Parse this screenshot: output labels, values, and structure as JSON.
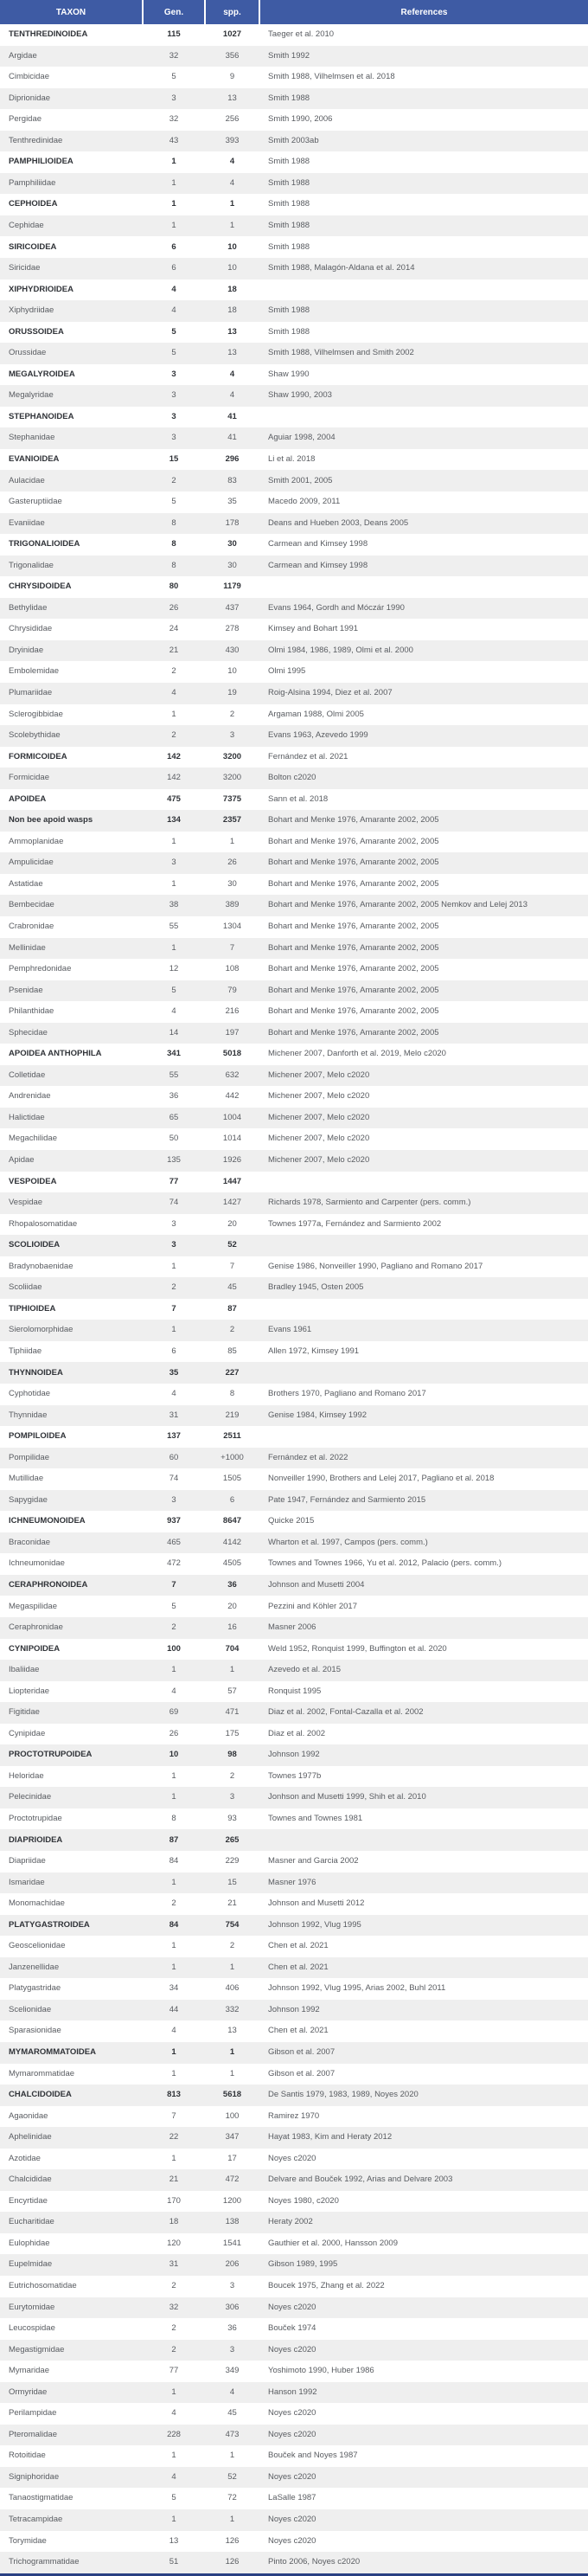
{
  "table": {
    "columns": [
      "TAXON",
      "Gen.",
      "spp.",
      "References"
    ],
    "rows": [
      {
        "taxon": "TENTHREDINOIDEA",
        "gen": "115",
        "spp": "1027",
        "refs": "Taeger et al. 2010",
        "bold": true
      },
      {
        "taxon": "Argidae",
        "gen": "32",
        "spp": "356",
        "refs": "Smith 1992",
        "bold": false
      },
      {
        "taxon": "Cimbicidae",
        "gen": "5",
        "spp": "9",
        "refs": "Smith 1988, Vilhelmsen et al. 2018",
        "bold": false
      },
      {
        "taxon": "Diprionidae",
        "gen": "3",
        "spp": "13",
        "refs": "Smith 1988",
        "bold": false
      },
      {
        "taxon": "Pergidae",
        "gen": "32",
        "spp": "256",
        "refs": "Smith 1990, 2006",
        "bold": false
      },
      {
        "taxon": "Tenthredinidae",
        "gen": "43",
        "spp": "393",
        "refs": "Smith 2003ab",
        "bold": false
      },
      {
        "taxon": "PAMPHILIOIDEA",
        "gen": "1",
        "spp": "4",
        "refs": "Smith 1988",
        "bold": true
      },
      {
        "taxon": "Pamphiliidae",
        "gen": "1",
        "spp": "4",
        "refs": "Smith 1988",
        "bold": false
      },
      {
        "taxon": "CEPHOIDEA",
        "gen": "1",
        "spp": "1",
        "refs": "Smith 1988",
        "bold": true
      },
      {
        "taxon": "Cephidae",
        "gen": "1",
        "spp": "1",
        "refs": "Smith 1988",
        "bold": false
      },
      {
        "taxon": "SIRICOIDEA",
        "gen": "6",
        "spp": "10",
        "refs": "Smith 1988",
        "bold": true
      },
      {
        "taxon": "Siricidae",
        "gen": "6",
        "spp": "10",
        "refs": "Smith 1988, Malagón-Aldana et al. 2014",
        "bold": false
      },
      {
        "taxon": "XIPHYDRIOIDEA",
        "gen": "4",
        "spp": "18",
        "refs": "",
        "bold": true
      },
      {
        "taxon": "Xiphydriidae",
        "gen": "4",
        "spp": "18",
        "refs": "Smith 1988",
        "bold": false
      },
      {
        "taxon": "ORUSSOIDEA",
        "gen": "5",
        "spp": "13",
        "refs": "Smith 1988",
        "bold": true
      },
      {
        "taxon": "Orussidae",
        "gen": "5",
        "spp": "13",
        "refs": "Smith 1988, Vilhelmsen and Smith 2002",
        "bold": false
      },
      {
        "taxon": "MEGALYROIDEA",
        "gen": "3",
        "spp": "4",
        "refs": "Shaw 1990",
        "bold": true
      },
      {
        "taxon": "Megalyridae",
        "gen": "3",
        "spp": "4",
        "refs": "Shaw 1990, 2003",
        "bold": false
      },
      {
        "taxon": "STEPHANOIDEA",
        "gen": "3",
        "spp": "41",
        "refs": "",
        "bold": true
      },
      {
        "taxon": "Stephanidae",
        "gen": "3",
        "spp": "41",
        "refs": "Aguiar 1998, 2004",
        "bold": false
      },
      {
        "taxon": "EVANIOIDEA",
        "gen": "15",
        "spp": "296",
        "refs": "Li et al. 2018",
        "bold": true
      },
      {
        "taxon": "Aulacidae",
        "gen": "2",
        "spp": "83",
        "refs": "Smith 2001, 2005",
        "bold": false
      },
      {
        "taxon": "Gasteruptiidae",
        "gen": "5",
        "spp": "35",
        "refs": "Macedo 2009, 2011",
        "bold": false
      },
      {
        "taxon": "Evaniidae",
        "gen": "8",
        "spp": "178",
        "refs": "Deans and Hueben 2003, Deans 2005",
        "bold": false
      },
      {
        "taxon": "TRIGONALIOIDEA",
        "gen": "8",
        "spp": "30",
        "refs": "Carmean and Kimsey 1998",
        "bold": true
      },
      {
        "taxon": "Trigonalidae",
        "gen": "8",
        "spp": "30",
        "refs": "Carmean and Kimsey 1998",
        "bold": false
      },
      {
        "taxon": "CHRYSIDOIDEA",
        "gen": "80",
        "spp": "1179",
        "refs": "",
        "bold": true
      },
      {
        "taxon": "Bethylidae",
        "gen": "26",
        "spp": "437",
        "refs": "Evans 1964, Gordh and Móczár 1990",
        "bold": false
      },
      {
        "taxon": "Chrysididae",
        "gen": "24",
        "spp": "278",
        "refs": "Kimsey and Bohart 1991",
        "bold": false
      },
      {
        "taxon": "Dryinidae",
        "gen": "21",
        "spp": "430",
        "refs": "Olmi 1984, 1986, 1989, Olmi et al. 2000",
        "bold": false
      },
      {
        "taxon": "Embolemidae",
        "gen": "2",
        "spp": "10",
        "refs": "Olmi 1995",
        "bold": false
      },
      {
        "taxon": "Plumariidae",
        "gen": "4",
        "spp": "19",
        "refs": "Roig-Alsina 1994, Diez et al. 2007",
        "bold": false
      },
      {
        "taxon": "Sclerogibbidae",
        "gen": "1",
        "spp": "2",
        "refs": "Argaman 1988, Olmi 2005",
        "bold": false
      },
      {
        "taxon": "Scolebythidae",
        "gen": "2",
        "spp": "3",
        "refs": "Evans 1963, Azevedo 1999",
        "bold": false
      },
      {
        "taxon": "FORMICOIDEA",
        "gen": "142",
        "spp": "3200",
        "refs": "Fernández et al. 2021",
        "bold": true
      },
      {
        "taxon": "Formicidae",
        "gen": "142",
        "spp": "3200",
        "refs": "Bolton c2020",
        "bold": false
      },
      {
        "taxon": "APOIDEA",
        "gen": "475",
        "spp": "7375",
        "refs": "Sann et al. 2018",
        "bold": true
      },
      {
        "taxon": "Non bee apoid wasps",
        "gen": "134",
        "spp": "2357",
        "refs": "Bohart and Menke 1976, Amarante 2002, 2005",
        "bold": true
      },
      {
        "taxon": "Ammoplanidae",
        "gen": "1",
        "spp": "1",
        "refs": "Bohart and Menke 1976, Amarante 2002, 2005",
        "bold": false
      },
      {
        "taxon": "Ampulicidae",
        "gen": "3",
        "spp": "26",
        "refs": "Bohart and Menke 1976, Amarante 2002, 2005",
        "bold": false
      },
      {
        "taxon": "Astatidae",
        "gen": "1",
        "spp": "30",
        "refs": "Bohart and Menke 1976, Amarante 2002, 2005",
        "bold": false
      },
      {
        "taxon": "Bembecidae",
        "gen": "38",
        "spp": "389",
        "refs": "Bohart and Menke 1976, Amarante 2002, 2005 Nemkov and Lelej 2013",
        "bold": false
      },
      {
        "taxon": "Crabronidae",
        "gen": "55",
        "spp": "1304",
        "refs": "Bohart and Menke 1976, Amarante 2002, 2005",
        "bold": false
      },
      {
        "taxon": "Mellinidae",
        "gen": "1",
        "spp": "7",
        "refs": "Bohart and Menke 1976, Amarante 2002, 2005",
        "bold": false
      },
      {
        "taxon": "Pemphredonidae",
        "gen": "12",
        "spp": "108",
        "refs": "Bohart and Menke 1976, Amarante 2002, 2005",
        "bold": false
      },
      {
        "taxon": "Psenidae",
        "gen": "5",
        "spp": "79",
        "refs": "Bohart and Menke 1976, Amarante 2002, 2005",
        "bold": false
      },
      {
        "taxon": "Philanthidae",
        "gen": "4",
        "spp": "216",
        "refs": "Bohart and Menke 1976, Amarante 2002, 2005",
        "bold": false
      },
      {
        "taxon": "Sphecidae",
        "gen": "14",
        "spp": "197",
        "refs": "Bohart and Menke 1976, Amarante 2002, 2005",
        "bold": false
      },
      {
        "taxon": "APOIDEA ANTHOPHILA",
        "gen": "341",
        "spp": "5018",
        "refs": "Michener 2007, Danforth et al. 2019, Melo c2020",
        "bold": true
      },
      {
        "taxon": "Colletidae",
        "gen": "55",
        "spp": "632",
        "refs": "Michener 2007, Melo c2020",
        "bold": false
      },
      {
        "taxon": "Andrenidae",
        "gen": "36",
        "spp": "442",
        "refs": "Michener 2007, Melo c2020",
        "bold": false
      },
      {
        "taxon": "Halictidae",
        "gen": "65",
        "spp": "1004",
        "refs": "Michener 2007, Melo c2020",
        "bold": false
      },
      {
        "taxon": "Megachilidae",
        "gen": "50",
        "spp": "1014",
        "refs": "Michener 2007, Melo c2020",
        "bold": false
      },
      {
        "taxon": "Apidae",
        "gen": "135",
        "spp": "1926",
        "refs": "Michener 2007, Melo c2020",
        "bold": false
      },
      {
        "taxon": "VESPOIDEA",
        "gen": "77",
        "spp": "1447",
        "refs": "",
        "bold": true
      },
      {
        "taxon": "Vespidae",
        "gen": "74",
        "spp": "1427",
        "refs": "Richards 1978, Sarmiento and Carpenter (pers. comm.)",
        "bold": false
      },
      {
        "taxon": "Rhopalosomatidae",
        "gen": "3",
        "spp": "20",
        "refs": "Townes 1977a, Fernández and Sarmiento 2002",
        "bold": false
      },
      {
        "taxon": "SCOLIOIDEA",
        "gen": "3",
        "spp": "52",
        "refs": "",
        "bold": true
      },
      {
        "taxon": "Bradynobaenidae",
        "gen": "1",
        "spp": "7",
        "refs": "Genise 1986, Nonveiller 1990, Pagliano and Romano 2017",
        "bold": false
      },
      {
        "taxon": "Scoliidae",
        "gen": "2",
        "spp": "45",
        "refs": "Bradley 1945, Osten 2005",
        "bold": false
      },
      {
        "taxon": "TIPHIOIDEA",
        "gen": "7",
        "spp": "87",
        "refs": "",
        "bold": true
      },
      {
        "taxon": "Sierolomorphidae",
        "gen": "1",
        "spp": "2",
        "refs": "Evans 1961",
        "bold": false
      },
      {
        "taxon": "Tiphiidae",
        "gen": "6",
        "spp": "85",
        "refs": "Allen 1972, Kimsey 1991",
        "bold": false
      },
      {
        "taxon": "THYNNOIDEA",
        "gen": "35",
        "spp": "227",
        "refs": "",
        "bold": true
      },
      {
        "taxon": "Cyphotidae",
        "gen": "4",
        "spp": "8",
        "refs": "Brothers 1970, Pagliano and Romano 2017",
        "bold": false
      },
      {
        "taxon": "Thynnidae",
        "gen": "31",
        "spp": "219",
        "refs": "Genise 1984, Kimsey 1992",
        "bold": false
      },
      {
        "taxon": "POMPILOIDEA",
        "gen": "137",
        "spp": "2511",
        "refs": "",
        "bold": true
      },
      {
        "taxon": "Pompilidae",
        "gen": "60",
        "spp": "+1000",
        "refs": "Fernández et al. 2022",
        "bold": false
      },
      {
        "taxon": "Mutillidae",
        "gen": "74",
        "spp": "1505",
        "refs": "Nonveiller 1990, Brothers and Lelej 2017, Pagliano et al. 2018",
        "bold": false
      },
      {
        "taxon": "Sapygidae",
        "gen": "3",
        "spp": "6",
        "refs": "Pate 1947, Fernández and Sarmiento 2015",
        "bold": false
      },
      {
        "taxon": "ICHNEUMONOIDEA",
        "gen": "937",
        "spp": "8647",
        "refs": "Quicke 2015",
        "bold": true
      },
      {
        "taxon": "Braconidae",
        "gen": "465",
        "spp": "4142",
        "refs": "Wharton et al. 1997, Campos (pers. comm.)",
        "bold": false
      },
      {
        "taxon": "Ichneumonidae",
        "gen": "472",
        "spp": "4505",
        "refs": "Townes and Townes 1966, Yu et al. 2012, Palacio (pers. comm.)",
        "bold": false
      },
      {
        "taxon": "CERAPHRONOIDEA",
        "gen": "7",
        "spp": "36",
        "refs": "Johnson and Musetti 2004",
        "bold": true
      },
      {
        "taxon": "Megaspilidae",
        "gen": "5",
        "spp": "20",
        "refs": "Pezzini and Köhler 2017",
        "bold": false
      },
      {
        "taxon": "Ceraphronidae",
        "gen": "2",
        "spp": "16",
        "refs": "Masner 2006",
        "bold": false
      },
      {
        "taxon": "CYNIPOIDEA",
        "gen": "100",
        "spp": "704",
        "refs": "Weld 1952, Ronquist 1999, Buffington et al. 2020",
        "bold": true
      },
      {
        "taxon": "Ibaliidae",
        "gen": "1",
        "spp": "1",
        "refs": "Azevedo et al. 2015",
        "bold": false
      },
      {
        "taxon": "Liopteridae",
        "gen": "4",
        "spp": "57",
        "refs": "Ronquist 1995",
        "bold": false
      },
      {
        "taxon": "Figitidae",
        "gen": "69",
        "spp": "471",
        "refs": "Diaz et al. 2002, Fontal-Cazalla et al. 2002",
        "bold": false
      },
      {
        "taxon": "Cynipidae",
        "gen": "26",
        "spp": "175",
        "refs": "Diaz et al. 2002",
        "bold": false
      },
      {
        "taxon": "PROCTOTRUPOIDEA",
        "gen": "10",
        "spp": "98",
        "refs": "Johnson 1992",
        "bold": true
      },
      {
        "taxon": "Heloridae",
        "gen": "1",
        "spp": "2",
        "refs": "Townes 1977b",
        "bold": false
      },
      {
        "taxon": "Pelecinidae",
        "gen": "1",
        "spp": "3",
        "refs": "Jonhson and Musetti 1999, Shih et al. 2010",
        "bold": false
      },
      {
        "taxon": "Proctotrupidae",
        "gen": "8",
        "spp": "93",
        "refs": "Townes and Townes 1981",
        "bold": false
      },
      {
        "taxon": "DIAPRIOIDEA",
        "gen": "87",
        "spp": "265",
        "refs": "",
        "bold": true
      },
      {
        "taxon": "Diapriidae",
        "gen": "84",
        "spp": "229",
        "refs": "Masner and Garcia 2002",
        "bold": false
      },
      {
        "taxon": "Ismaridae",
        "gen": "1",
        "spp": "15",
        "refs": "Masner 1976",
        "bold": false
      },
      {
        "taxon": "Monomachidae",
        "gen": "2",
        "spp": "21",
        "refs": "Johnson and Musetti 2012",
        "bold": false
      },
      {
        "taxon": "PLATYGASTROIDEA",
        "gen": "84",
        "spp": "754",
        "refs": "Johnson 1992, Vlug 1995",
        "bold": true
      },
      {
        "taxon": "Geoscelionidae",
        "gen": "1",
        "spp": "2",
        "refs": "Chen et al. 2021",
        "bold": false
      },
      {
        "taxon": "Janzenellidae",
        "gen": "1",
        "spp": "1",
        "refs": "Chen et al. 2021",
        "bold": false
      },
      {
        "taxon": "Platygastridae",
        "gen": "34",
        "spp": "406",
        "refs": "Johnson 1992, Vlug 1995, Arias 2002, Buhl 2011",
        "bold": false
      },
      {
        "taxon": "Scelionidae",
        "gen": "44",
        "spp": "332",
        "refs": "Johnson 1992",
        "bold": false
      },
      {
        "taxon": "Sparasionidae",
        "gen": "4",
        "spp": "13",
        "refs": "Chen et al. 2021",
        "bold": false
      },
      {
        "taxon": "MYMAROMMATOIDEA",
        "gen": "1",
        "spp": "1",
        "refs": "Gibson et al. 2007",
        "bold": true
      },
      {
        "taxon": "Mymarommatidae",
        "gen": "1",
        "spp": "1",
        "refs": "Gibson et al. 2007",
        "bold": false
      },
      {
        "taxon": "CHALCIDOIDEA",
        "gen": "813",
        "spp": "5618",
        "refs": "De Santis 1979, 1983, 1989, Noyes 2020",
        "bold": true
      },
      {
        "taxon": "Agaonidae",
        "gen": "7",
        "spp": "100",
        "refs": "Ramirez 1970",
        "bold": false
      },
      {
        "taxon": "Aphelinidae",
        "gen": "22",
        "spp": "347",
        "refs": "Hayat 1983, Kim and Heraty 2012",
        "bold": false
      },
      {
        "taxon": "Azotidae",
        "gen": "1",
        "spp": "17",
        "refs": "Noyes c2020",
        "bold": false
      },
      {
        "taxon": "Chalcididae",
        "gen": "21",
        "spp": "472",
        "refs": "Delvare and Bouček 1992, Arias and Delvare 2003",
        "bold": false
      },
      {
        "taxon": "Encyrtidae",
        "gen": "170",
        "spp": "1200",
        "refs": "Noyes 1980, c2020",
        "bold": false
      },
      {
        "taxon": "Eucharitidae",
        "gen": "18",
        "spp": "138",
        "refs": "Heraty 2002",
        "bold": false
      },
      {
        "taxon": "Eulophidae",
        "gen": "120",
        "spp": "1541",
        "refs": "Gauthier et al. 2000, Hansson 2009",
        "bold": false
      },
      {
        "taxon": "Eupelmidae",
        "gen": "31",
        "spp": "206",
        "refs": "Gibson 1989, 1995",
        "bold": false
      },
      {
        "taxon": "Eutrichosomatidae",
        "gen": "2",
        "spp": "3",
        "refs": "Boucek 1975, Zhang et al. 2022",
        "bold": false
      },
      {
        "taxon": "Eurytomidae",
        "gen": "32",
        "spp": "306",
        "refs": "Noyes c2020",
        "bold": false
      },
      {
        "taxon": "Leucospidae",
        "gen": "2",
        "spp": "36",
        "refs": "Bouček 1974",
        "bold": false
      },
      {
        "taxon": "Megastigmidae",
        "gen": "2",
        "spp": "3",
        "refs": "Noyes c2020",
        "bold": false
      },
      {
        "taxon": "Mymaridae",
        "gen": "77",
        "spp": "349",
        "refs": "Yoshimoto 1990, Huber 1986",
        "bold": false
      },
      {
        "taxon": "Ormyridae",
        "gen": "1",
        "spp": "4",
        "refs": "Hanson 1992",
        "bold": false
      },
      {
        "taxon": "Perilampidae",
        "gen": "4",
        "spp": "45",
        "refs": "Noyes c2020",
        "bold": false
      },
      {
        "taxon": "Pteromalidae",
        "gen": "228",
        "spp": "473",
        "refs": "Noyes c2020",
        "bold": false
      },
      {
        "taxon": "Rotoitidae",
        "gen": "1",
        "spp": "1",
        "refs": "Bouček and Noyes 1987",
        "bold": false
      },
      {
        "taxon": "Signiphoridae",
        "gen": "4",
        "spp": "52",
        "refs": "Noyes c2020",
        "bold": false
      },
      {
        "taxon": "Tanaostigmatidae",
        "gen": "5",
        "spp": "72",
        "refs": "LaSalle 1987",
        "bold": false
      },
      {
        "taxon": "Tetracampidae",
        "gen": "1",
        "spp": "1",
        "refs": "Noyes c2020",
        "bold": false
      },
      {
        "taxon": "Torymidae",
        "gen": "13",
        "spp": "126",
        "refs": "Noyes c2020",
        "bold": false
      },
      {
        "taxon": "Trichogrammatidae",
        "gen": "51",
        "spp": "126",
        "refs": "Pinto 2006, Noyes c2020",
        "bold": false
      }
    ]
  },
  "colors": {
    "header_bg": "#3e5ba4",
    "header_text": "#ffffff",
    "row_alt_bg": "#efefef",
    "body_text": "#595c61",
    "superfamily_text": "#303338",
    "bottom_border": "#2a4183"
  }
}
